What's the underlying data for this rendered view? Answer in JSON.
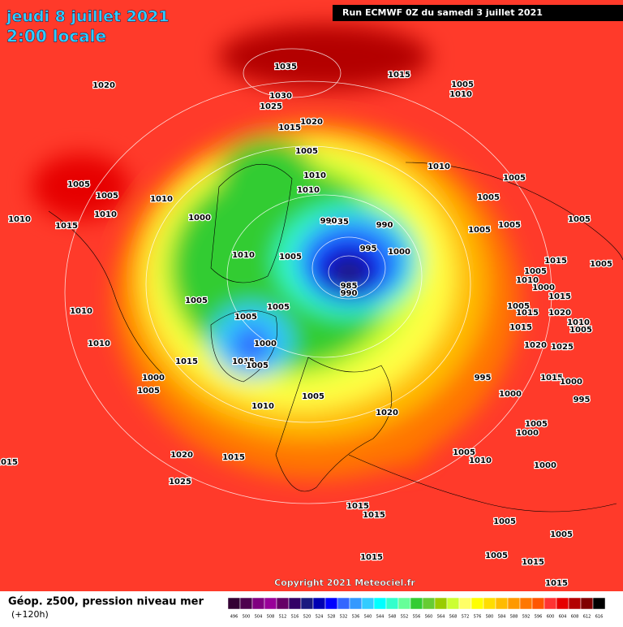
{
  "header": {
    "date": "jeudi 8 juillet 2021",
    "time": "2:00 locale",
    "run": "Run ECMWF 0Z du samedi 3 juillet 2021"
  },
  "copyright": "Copyright 2021 Meteociel.fr",
  "legend": {
    "title": "Géop. z500, pression niveau mer",
    "subtitle": "(+120h)"
  },
  "colorbar": {
    "values": [
      496,
      500,
      504,
      508,
      512,
      516,
      520,
      524,
      528,
      532,
      536,
      540,
      544,
      548,
      552,
      556,
      560,
      564,
      568,
      572,
      576,
      580,
      584,
      588,
      592,
      596,
      600,
      604,
      608,
      612,
      616
    ],
    "colors": [
      "#330033",
      "#4d004d",
      "#800080",
      "#990099",
      "#660066",
      "#330066",
      "#1a1a80",
      "#0000b3",
      "#0000ff",
      "#3366ff",
      "#3399ff",
      "#33ccff",
      "#00ffff",
      "#33ffcc",
      "#66ff99",
      "#33cc33",
      "#66cc33",
      "#99cc00",
      "#ccff33",
      "#ffff66",
      "#ffff00",
      "#ffdd00",
      "#ffbb00",
      "#ff9900",
      "#ff7700",
      "#ff5500",
      "#ff3333",
      "#e60000",
      "#b30000",
      "#800000",
      "#000000"
    ]
  },
  "isobar_labels": [
    "1035",
    "1020",
    "1015",
    "1005",
    "1010",
    "1030",
    "1025",
    "1020",
    "1015",
    "1005",
    "1010",
    "1005",
    "1010",
    "1010",
    "1005",
    "1005",
    "1010",
    "1010",
    "1010",
    "1015",
    "1000",
    "1035",
    "990",
    "990",
    "1005",
    "1005",
    "1005",
    "995",
    "1000",
    "1005",
    "1005",
    "1010",
    "985",
    "990",
    "1015",
    "1005",
    "1005",
    "1010",
    "1000",
    "1015",
    "1005",
    "1005",
    "1005",
    "1015",
    "1020",
    "1010",
    "1010",
    "1005",
    "1015",
    "1005",
    "1000",
    "1010",
    "1020",
    "1025",
    "1015",
    "1015",
    "1005",
    "1000",
    "995",
    "1015",
    "1000",
    "1005",
    "1005",
    "1000",
    "995",
    "1010",
    "1020",
    "1005",
    "1000",
    "1005",
    "1020",
    "1015",
    "1010",
    "1015",
    "1000",
    "1025",
    "1015",
    "1015",
    "1005",
    "1005",
    "1005",
    "1015",
    "1015",
    "1015"
  ]
}
